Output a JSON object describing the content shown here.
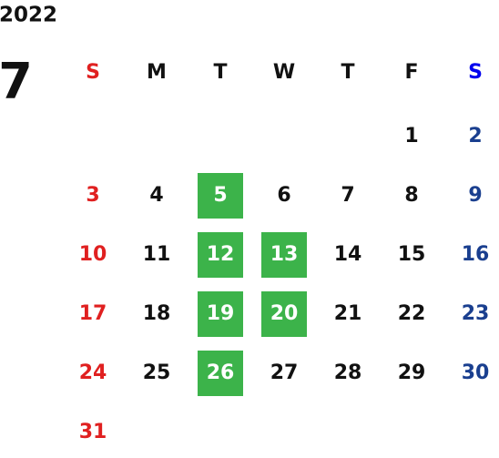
{
  "year": "2022",
  "month": "7",
  "weekdays": [
    "S",
    "M",
    "T",
    "W",
    "T",
    "F",
    "S"
  ],
  "weeks": [
    [
      null,
      null,
      null,
      null,
      null,
      1,
      2
    ],
    [
      3,
      4,
      5,
      6,
      7,
      8,
      9
    ],
    [
      10,
      11,
      12,
      13,
      14,
      15,
      16
    ],
    [
      17,
      18,
      19,
      20,
      21,
      22,
      23
    ],
    [
      24,
      25,
      26,
      27,
      28,
      29,
      30
    ],
    [
      31
    ]
  ],
  "highlighted": [
    5,
    12,
    13,
    19,
    20,
    26
  ],
  "highlight_color": "#3cb34a",
  "sunday_color": "#e02020",
  "saturday_header_color": "#0000ee",
  "saturday_color": "#1a3f8f"
}
